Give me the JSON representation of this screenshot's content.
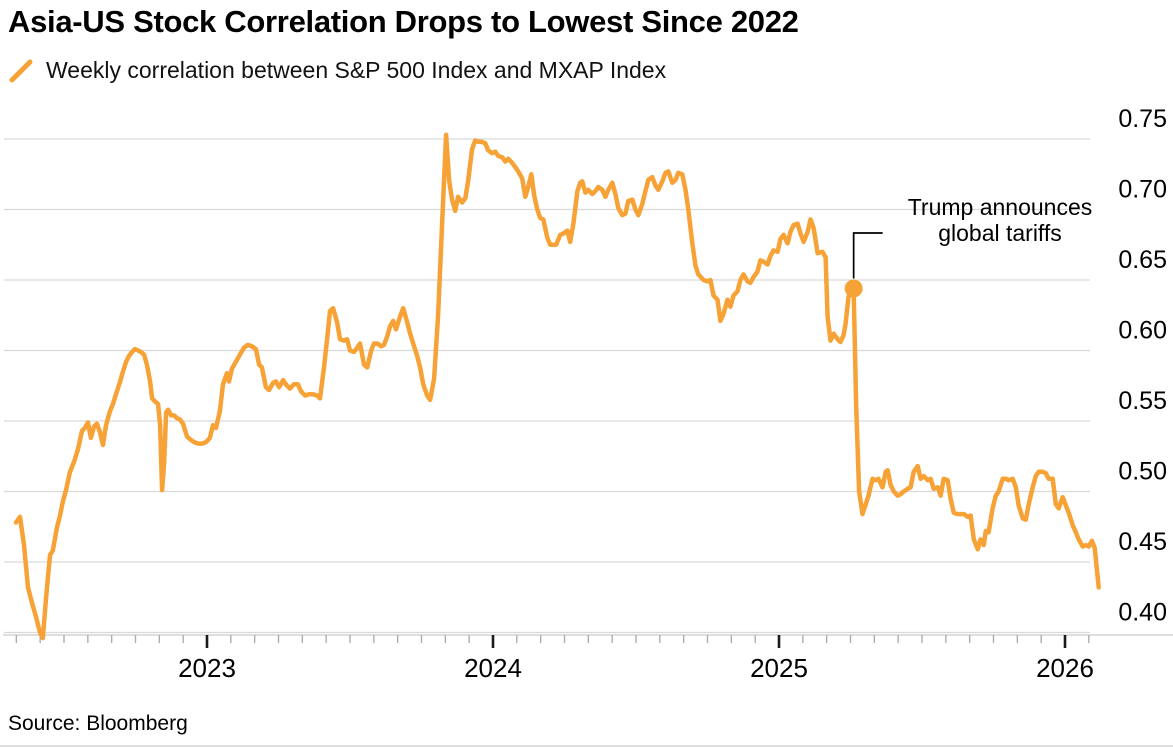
{
  "page": {
    "title": "Asia-US Stock Correlation Drops to Lowest Since 2022",
    "source": "Source: Bloomberg"
  },
  "legend": {
    "marker": "orange-slash",
    "label": "Weekly correlation between S&P 500 Index and MXAP Index"
  },
  "annotation": {
    "line1": "Trump announces",
    "line2": "global tariffs"
  },
  "colors": {
    "line": "#F7A236",
    "grid": "#D9D9D9",
    "axis": "#C9C9C9",
    "minor_tick": "#ADADAD",
    "major_tick": "#1A1A1A",
    "text": "#000000"
  },
  "chart_data": {
    "type": "line",
    "title": "Asia-US Stock Correlation Drops to Lowest Since 2022",
    "series_name": "Weekly correlation between S&P 500 Index and MXAP Index",
    "grid": "horizontal",
    "y_axis_side": "right",
    "x_range": [
      2022.28,
      2026.38
    ],
    "ylim": [
      0.4,
      0.75
    ],
    "y_ticks": [
      0.75,
      0.7,
      0.65,
      0.6,
      0.55,
      0.5,
      0.45,
      0.4
    ],
    "x_year_labels": [
      "2023",
      "2024",
      "2025",
      "2026"
    ],
    "annotation_point": {
      "x": 2025.261,
      "y": 0.644
    },
    "points": [
      [
        2022.332,
        0.478
      ],
      [
        2022.346,
        0.482
      ],
      [
        2022.36,
        0.462
      ],
      [
        2022.374,
        0.432
      ],
      [
        2022.388,
        0.421
      ],
      [
        2022.402,
        0.411
      ],
      [
        2022.416,
        0.4
      ],
      [
        2022.426,
        0.396
      ],
      [
        2022.437,
        0.424
      ],
      [
        2022.451,
        0.455
      ],
      [
        2022.461,
        0.458
      ],
      [
        2022.475,
        0.474
      ],
      [
        2022.486,
        0.483
      ],
      [
        2022.496,
        0.493
      ],
      [
        2022.507,
        0.501
      ],
      [
        2022.521,
        0.514
      ],
      [
        2022.535,
        0.521
      ],
      [
        2022.549,
        0.53
      ],
      [
        2022.563,
        0.543
      ],
      [
        2022.573,
        0.545
      ],
      [
        2022.584,
        0.549
      ],
      [
        2022.594,
        0.538
      ],
      [
        2022.605,
        0.546
      ],
      [
        2022.615,
        0.548
      ],
      [
        2022.626,
        0.542
      ],
      [
        2022.636,
        0.533
      ],
      [
        2022.647,
        0.547
      ],
      [
        2022.661,
        0.557
      ],
      [
        2022.671,
        0.562
      ],
      [
        2022.685,
        0.571
      ],
      [
        2022.696,
        0.578
      ],
      [
        2022.706,
        0.585
      ],
      [
        2022.717,
        0.592
      ],
      [
        2022.727,
        0.596
      ],
      [
        2022.738,
        0.599
      ],
      [
        2022.748,
        0.601
      ],
      [
        2022.759,
        0.6
      ],
      [
        2022.769,
        0.599
      ],
      [
        2022.78,
        0.597
      ],
      [
        2022.79,
        0.59
      ],
      [
        2022.801,
        0.578
      ],
      [
        2022.808,
        0.566
      ],
      [
        2022.818,
        0.564
      ],
      [
        2022.829,
        0.562
      ],
      [
        2022.836,
        0.547
      ],
      [
        2022.843,
        0.501
      ],
      [
        2022.85,
        0.52
      ],
      [
        2022.857,
        0.556
      ],
      [
        2022.864,
        0.558
      ],
      [
        2022.874,
        0.554
      ],
      [
        2022.885,
        0.554
      ],
      [
        2022.895,
        0.552
      ],
      [
        2022.906,
        0.551
      ],
      [
        2022.916,
        0.548
      ],
      [
        2022.93,
        0.539
      ],
      [
        2022.941,
        0.537
      ],
      [
        2022.955,
        0.535
      ],
      [
        2022.969,
        0.534
      ],
      [
        2022.983,
        0.534
      ],
      [
        2022.997,
        0.535
      ],
      [
        2023.01,
        0.538
      ],
      [
        2023.021,
        0.547
      ],
      [
        2023.031,
        0.545
      ],
      [
        2023.045,
        0.557
      ],
      [
        2023.056,
        0.576
      ],
      [
        2023.07,
        0.584
      ],
      [
        2023.077,
        0.578
      ],
      [
        2023.087,
        0.587
      ],
      [
        2023.101,
        0.592
      ],
      [
        2023.115,
        0.597
      ],
      [
        2023.129,
        0.602
      ],
      [
        2023.143,
        0.604
      ],
      [
        2023.157,
        0.603
      ],
      [
        2023.171,
        0.601
      ],
      [
        2023.182,
        0.59
      ],
      [
        2023.192,
        0.588
      ],
      [
        2023.206,
        0.574
      ],
      [
        2023.217,
        0.572
      ],
      [
        2023.231,
        0.577
      ],
      [
        2023.241,
        0.578
      ],
      [
        2023.252,
        0.574
      ],
      [
        2023.266,
        0.579
      ],
      [
        2023.276,
        0.576
      ],
      [
        2023.29,
        0.573
      ],
      [
        2023.304,
        0.576
      ],
      [
        2023.318,
        0.576
      ],
      [
        2023.329,
        0.571
      ],
      [
        2023.343,
        0.568
      ],
      [
        2023.357,
        0.569
      ],
      [
        2023.371,
        0.569
      ],
      [
        2023.385,
        0.568
      ],
      [
        2023.395,
        0.566
      ],
      [
        2023.409,
        0.588
      ],
      [
        2023.42,
        0.608
      ],
      [
        2023.43,
        0.628
      ],
      [
        2023.441,
        0.63
      ],
      [
        2023.455,
        0.62
      ],
      [
        2023.465,
        0.608
      ],
      [
        2023.479,
        0.607
      ],
      [
        2023.49,
        0.608
      ],
      [
        2023.5,
        0.6
      ],
      [
        2023.514,
        0.599
      ],
      [
        2023.525,
        0.602
      ],
      [
        2023.535,
        0.605
      ],
      [
        2023.549,
        0.59
      ],
      [
        2023.56,
        0.588
      ],
      [
        2023.574,
        0.6
      ],
      [
        2023.584,
        0.605
      ],
      [
        2023.595,
        0.605
      ],
      [
        2023.609,
        0.603
      ],
      [
        2023.619,
        0.604
      ],
      [
        2023.63,
        0.61
      ],
      [
        2023.64,
        0.617
      ],
      [
        2023.651,
        0.621
      ],
      [
        2023.661,
        0.615
      ],
      [
        2023.675,
        0.624
      ],
      [
        2023.686,
        0.63
      ],
      [
        2023.7,
        0.62
      ],
      [
        2023.71,
        0.612
      ],
      [
        2023.721,
        0.605
      ],
      [
        2023.735,
        0.596
      ],
      [
        2023.745,
        0.588
      ],
      [
        2023.756,
        0.576
      ],
      [
        2023.77,
        0.568
      ],
      [
        2023.78,
        0.565
      ],
      [
        2023.794,
        0.58
      ],
      [
        2023.808,
        0.625
      ],
      [
        2023.822,
        0.69
      ],
      [
        2023.836,
        0.753
      ],
      [
        2023.847,
        0.72
      ],
      [
        2023.857,
        0.707
      ],
      [
        2023.868,
        0.699
      ],
      [
        2023.878,
        0.709
      ],
      [
        2023.892,
        0.705
      ],
      [
        2023.903,
        0.708
      ],
      [
        2023.913,
        0.72
      ],
      [
        2023.927,
        0.743
      ],
      [
        2023.938,
        0.749
      ],
      [
        2023.948,
        0.748
      ],
      [
        2023.959,
        0.748
      ],
      [
        2023.973,
        0.747
      ],
      [
        2023.983,
        0.742
      ],
      [
        2023.997,
        0.74
      ],
      [
        2024.008,
        0.741
      ],
      [
        2024.018,
        0.738
      ],
      [
        2024.032,
        0.737
      ],
      [
        2024.043,
        0.734
      ],
      [
        2024.053,
        0.736
      ],
      [
        2024.067,
        0.733
      ],
      [
        2024.078,
        0.73
      ],
      [
        2024.088,
        0.727
      ],
      [
        2024.102,
        0.722
      ],
      [
        2024.113,
        0.709
      ],
      [
        2024.123,
        0.716
      ],
      [
        2024.134,
        0.725
      ],
      [
        2024.144,
        0.71
      ],
      [
        2024.155,
        0.7
      ],
      [
        2024.165,
        0.694
      ],
      [
        2024.176,
        0.693
      ],
      [
        2024.19,
        0.68
      ],
      [
        2024.2,
        0.675
      ],
      [
        2024.211,
        0.675
      ],
      [
        2024.221,
        0.675
      ],
      [
        2024.235,
        0.682
      ],
      [
        2024.246,
        0.683
      ],
      [
        2024.26,
        0.685
      ],
      [
        2024.27,
        0.677
      ],
      [
        2024.281,
        0.69
      ],
      [
        2024.295,
        0.713
      ],
      [
        2024.305,
        0.719
      ],
      [
        2024.312,
        0.72
      ],
      [
        2024.323,
        0.712
      ],
      [
        2024.333,
        0.714
      ],
      [
        2024.347,
        0.711
      ],
      [
        2024.358,
        0.713
      ],
      [
        2024.368,
        0.716
      ],
      [
        2024.382,
        0.714
      ],
      [
        2024.393,
        0.709
      ],
      [
        2024.403,
        0.714
      ],
      [
        2024.417,
        0.719
      ],
      [
        2024.428,
        0.711
      ],
      [
        2024.438,
        0.701
      ],
      [
        2024.452,
        0.696
      ],
      [
        2024.463,
        0.697
      ],
      [
        2024.473,
        0.706
      ],
      [
        2024.487,
        0.707
      ],
      [
        2024.498,
        0.7
      ],
      [
        2024.508,
        0.696
      ],
      [
        2024.522,
        0.704
      ],
      [
        2024.533,
        0.713
      ],
      [
        2024.543,
        0.721
      ],
      [
        2024.557,
        0.723
      ],
      [
        2024.568,
        0.717
      ],
      [
        2024.578,
        0.714
      ],
      [
        2024.592,
        0.72
      ],
      [
        2024.603,
        0.726
      ],
      [
        2024.613,
        0.727
      ],
      [
        2024.627,
        0.719
      ],
      [
        2024.638,
        0.721
      ],
      [
        2024.648,
        0.726
      ],
      [
        2024.662,
        0.725
      ],
      [
        2024.673,
        0.714
      ],
      [
        2024.683,
        0.7
      ],
      [
        2024.697,
        0.676
      ],
      [
        2024.708,
        0.66
      ],
      [
        2024.718,
        0.654
      ],
      [
        2024.736,
        0.65
      ],
      [
        2024.75,
        0.649
      ],
      [
        2024.76,
        0.65
      ],
      [
        2024.771,
        0.639
      ],
      [
        2024.785,
        0.636
      ],
      [
        2024.795,
        0.621
      ],
      [
        2024.806,
        0.626
      ],
      [
        2024.82,
        0.636
      ],
      [
        2024.83,
        0.631
      ],
      [
        2024.841,
        0.639
      ],
      [
        2024.855,
        0.642
      ],
      [
        2024.865,
        0.65
      ],
      [
        2024.876,
        0.654
      ],
      [
        2024.89,
        0.649
      ],
      [
        2024.9,
        0.648
      ],
      [
        2024.911,
        0.652
      ],
      [
        2024.925,
        0.656
      ],
      [
        2024.935,
        0.664
      ],
      [
        2024.946,
        0.663
      ],
      [
        2024.96,
        0.661
      ],
      [
        2024.97,
        0.667
      ],
      [
        2024.981,
        0.671
      ],
      [
        2024.995,
        0.67
      ],
      [
        2025.005,
        0.679
      ],
      [
        2025.016,
        0.682
      ],
      [
        2025.03,
        0.676
      ],
      [
        2025.04,
        0.684
      ],
      [
        2025.051,
        0.689
      ],
      [
        2025.065,
        0.69
      ],
      [
        2025.075,
        0.683
      ],
      [
        2025.086,
        0.677
      ],
      [
        2025.1,
        0.684
      ],
      [
        2025.11,
        0.693
      ],
      [
        2025.121,
        0.687
      ],
      [
        2025.135,
        0.669
      ],
      [
        2025.152,
        0.67
      ],
      [
        2025.163,
        0.666
      ],
      [
        2025.17,
        0.624
      ],
      [
        2025.18,
        0.607
      ],
      [
        2025.191,
        0.612
      ],
      [
        2025.205,
        0.608
      ],
      [
        2025.215,
        0.606
      ],
      [
        2025.226,
        0.611
      ],
      [
        2025.233,
        0.619
      ],
      [
        2025.243,
        0.638
      ],
      [
        2025.261,
        0.644
      ],
      [
        2025.27,
        0.56
      ],
      [
        2025.28,
        0.5
      ],
      [
        2025.292,
        0.484
      ],
      [
        2025.313,
        0.497
      ],
      [
        2025.327,
        0.509
      ],
      [
        2025.338,
        0.508
      ],
      [
        2025.348,
        0.509
      ],
      [
        2025.362,
        0.503
      ],
      [
        2025.373,
        0.514
      ],
      [
        2025.38,
        0.515
      ],
      [
        2025.39,
        0.505
      ],
      [
        2025.401,
        0.5
      ],
      [
        2025.415,
        0.497
      ],
      [
        2025.425,
        0.498
      ],
      [
        2025.436,
        0.5
      ],
      [
        2025.45,
        0.502
      ],
      [
        2025.46,
        0.503
      ],
      [
        2025.471,
        0.514
      ],
      [
        2025.485,
        0.518
      ],
      [
        2025.495,
        0.509
      ],
      [
        2025.506,
        0.511
      ],
      [
        2025.52,
        0.508
      ],
      [
        2025.53,
        0.509
      ],
      [
        2025.541,
        0.502
      ],
      [
        2025.555,
        0.503
      ],
      [
        2025.565,
        0.497
      ],
      [
        2025.576,
        0.509
      ],
      [
        2025.59,
        0.508
      ],
      [
        2025.6,
        0.495
      ],
      [
        2025.611,
        0.485
      ],
      [
        2025.625,
        0.484
      ],
      [
        2025.646,
        0.484
      ],
      [
        2025.66,
        0.482
      ],
      [
        2025.67,
        0.483
      ],
      [
        2025.681,
        0.466
      ],
      [
        2025.695,
        0.459
      ],
      [
        2025.705,
        0.466
      ],
      [
        2025.716,
        0.462
      ],
      [
        2025.723,
        0.472
      ],
      [
        2025.733,
        0.471
      ],
      [
        2025.747,
        0.488
      ],
      [
        2025.758,
        0.497
      ],
      [
        2025.768,
        0.5
      ],
      [
        2025.782,
        0.509
      ],
      [
        2025.793,
        0.509
      ],
      [
        2025.803,
        0.508
      ],
      [
        2025.817,
        0.509
      ],
      [
        2025.828,
        0.503
      ],
      [
        2025.838,
        0.49
      ],
      [
        2025.852,
        0.481
      ],
      [
        2025.863,
        0.48
      ],
      [
        2025.873,
        0.491
      ],
      [
        2025.887,
        0.503
      ],
      [
        2025.898,
        0.511
      ],
      [
        2025.908,
        0.514
      ],
      [
        2025.922,
        0.514
      ],
      [
        2025.933,
        0.513
      ],
      [
        2025.943,
        0.509
      ],
      [
        2025.957,
        0.509
      ],
      [
        2025.968,
        0.491
      ],
      [
        2025.978,
        0.488
      ],
      [
        2025.992,
        0.496
      ],
      [
        2026.003,
        0.49
      ],
      [
        2026.013,
        0.485
      ],
      [
        2026.027,
        0.476
      ],
      [
        2026.038,
        0.471
      ],
      [
        2026.048,
        0.466
      ],
      [
        2026.062,
        0.461
      ],
      [
        2026.073,
        0.462
      ],
      [
        2026.083,
        0.461
      ],
      [
        2026.094,
        0.465
      ],
      [
        2026.104,
        0.46
      ],
      [
        2026.118,
        0.432
      ]
    ]
  }
}
